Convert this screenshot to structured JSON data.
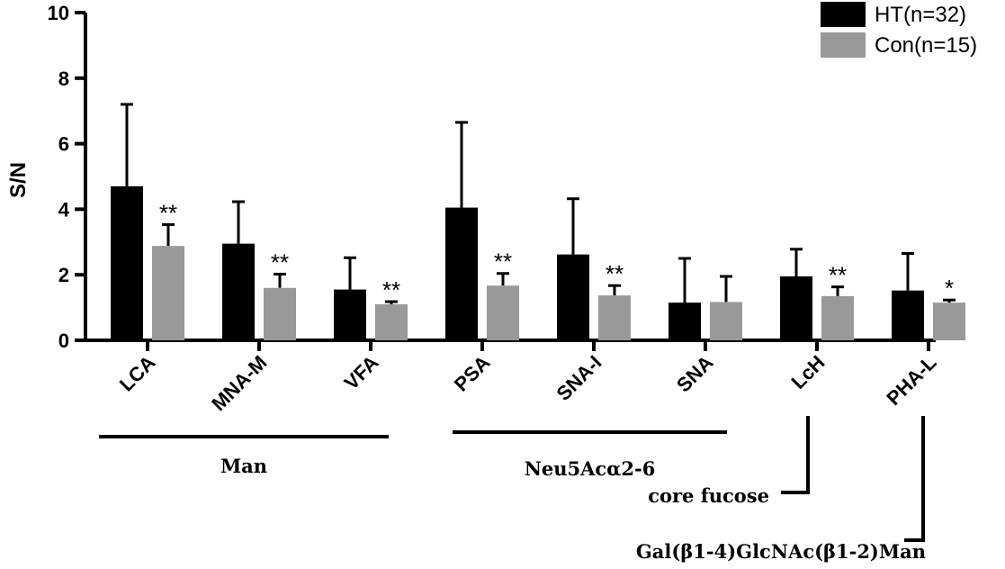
{
  "chart_data": {
    "type": "bar",
    "ylabel": "S/N",
    "ylim": [
      0,
      10
    ],
    "yticks": [
      0,
      2,
      4,
      6,
      8,
      10
    ],
    "categories": [
      "LCA",
      "MNA-M",
      "VFA",
      "PSA",
      "SNA-I",
      "SNA",
      "LcH",
      "PHA-L"
    ],
    "series": [
      {
        "name": "HT(n=32)",
        "color": "#000000",
        "values": [
          4.7,
          2.95,
          1.55,
          4.05,
          2.62,
          1.15,
          1.95,
          1.52
        ],
        "errors": [
          2.5,
          1.28,
          0.97,
          2.6,
          1.7,
          1.35,
          0.83,
          1.13
        ]
      },
      {
        "name": "Con(n=15)",
        "color": "#999999",
        "values": [
          2.88,
          1.6,
          1.1,
          1.67,
          1.37,
          1.17,
          1.35,
          1.15
        ],
        "errors": [
          0.65,
          0.42,
          0.08,
          0.37,
          0.3,
          0.78,
          0.28,
          0.08
        ]
      }
    ],
    "significance": [
      "**",
      "**",
      "**",
      "**",
      "**",
      "",
      "**",
      "*"
    ],
    "groups": [
      {
        "label": "Man",
        "from": 0,
        "to": 2
      },
      {
        "label": "Neu5Acα2-6",
        "from": 3,
        "to": 5
      },
      {
        "label": "core fucose",
        "from": 6,
        "to": 6
      },
      {
        "label": "Gal(β1-4)GlcNAc(β1-2)Man",
        "from": 7,
        "to": 7
      }
    ],
    "legend_position": "top-right",
    "grid": false
  }
}
